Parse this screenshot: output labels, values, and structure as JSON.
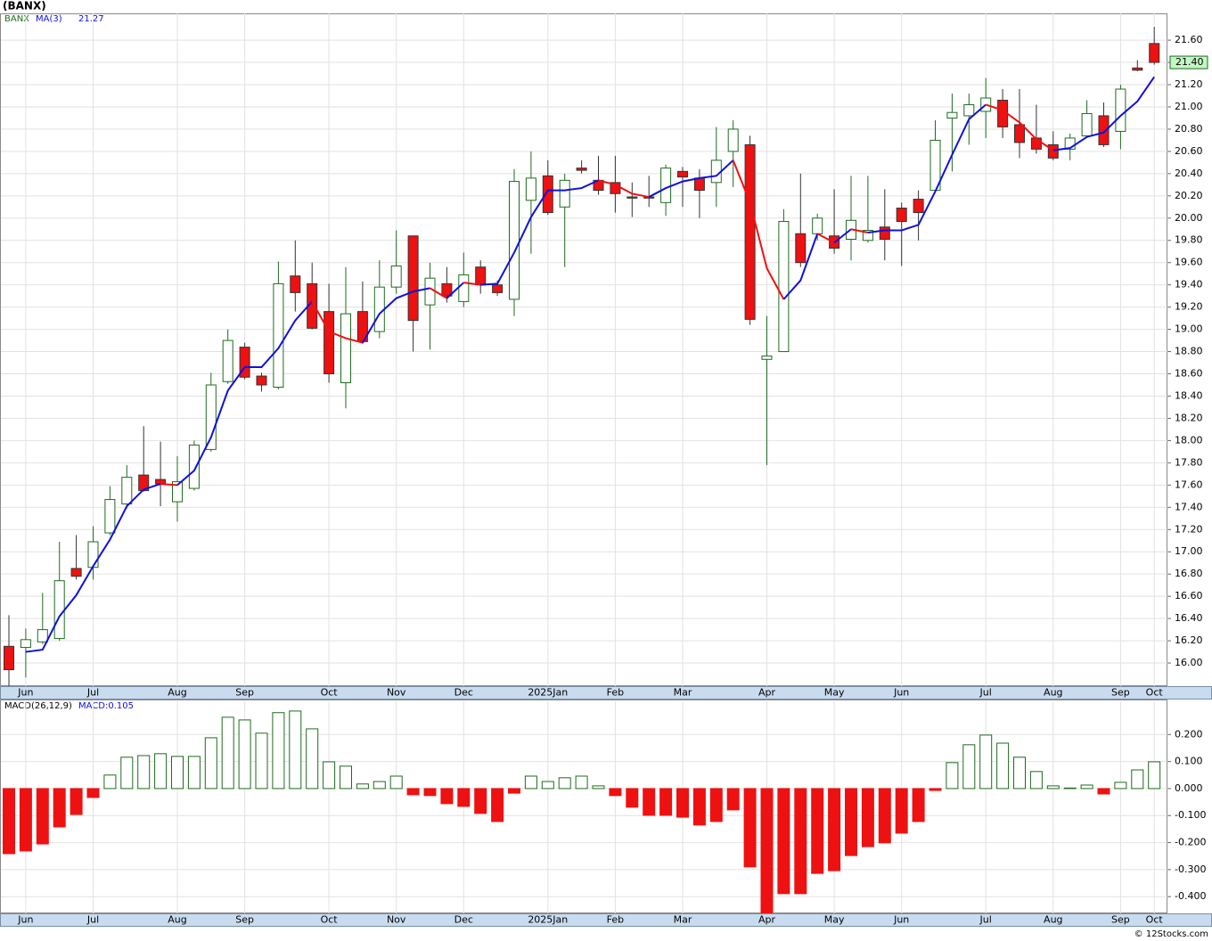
{
  "title": "(BANX)",
  "footer": "© 12Stocks.com",
  "chart_data": [
    {
      "type": "candlestick",
      "symbol": "BANX",
      "categories": [
        null,
        "Jun",
        null,
        null,
        null,
        "Jul",
        null,
        null,
        null,
        null,
        "Aug",
        null,
        null,
        null,
        "Sep",
        null,
        null,
        null,
        null,
        "Oct",
        null,
        null,
        null,
        "Nov",
        null,
        null,
        null,
        "Dec",
        null,
        null,
        null,
        null,
        "2025Jan",
        null,
        null,
        null,
        "Feb",
        null,
        null,
        null,
        "Mar",
        null,
        null,
        null,
        null,
        "Apr",
        null,
        null,
        null,
        "May",
        null,
        null,
        null,
        "Jun",
        null,
        null,
        null,
        null,
        "Jul",
        null,
        null,
        null,
        "Aug",
        null,
        null,
        null,
        "Sep",
        null,
        "Oct"
      ],
      "open": [
        16.15,
        16.14,
        16.19,
        16.22,
        16.85,
        16.86,
        17.17,
        17.43,
        17.69,
        17.65,
        17.45,
        17.57,
        17.92,
        18.53,
        18.84,
        18.58,
        18.48,
        19.48,
        19.41,
        19.16,
        18.52,
        19.16,
        18.98,
        19.38,
        19.84,
        19.22,
        19.41,
        19.25,
        19.56,
        19.4,
        19.27,
        20.16,
        20.38,
        20.1,
        20.45,
        20.34,
        20.32,
        20.19,
        20.19,
        20.14,
        20.42,
        20.36,
        20.32,
        20.6,
        20.66,
        18.73,
        18.8,
        19.86,
        19.86,
        19.84,
        19.81,
        19.8,
        19.92,
        20.09,
        20.17,
        20.25,
        20.9,
        20.92,
        20.96,
        21.06,
        20.84,
        20.72,
        20.66,
        20.62,
        20.74,
        20.92,
        20.78,
        21.35,
        21.57
      ],
      "high": [
        16.43,
        16.31,
        16.63,
        17.09,
        17.15,
        17.23,
        17.59,
        17.78,
        18.13,
        17.99,
        17.86,
        18.0,
        18.61,
        19.0,
        18.88,
        18.61,
        19.61,
        19.8,
        19.6,
        19.41,
        19.56,
        19.43,
        19.62,
        19.89,
        19.84,
        19.6,
        19.56,
        19.69,
        19.62,
        19.44,
        20.44,
        20.6,
        20.52,
        20.4,
        20.52,
        20.56,
        20.56,
        20.32,
        20.38,
        20.48,
        20.46,
        20.44,
        20.82,
        20.88,
        20.74,
        19.12,
        20.08,
        20.4,
        20.04,
        20.26,
        20.38,
        20.38,
        20.26,
        20.14,
        20.25,
        20.88,
        21.12,
        21.12,
        21.26,
        21.16,
        21.16,
        21.02,
        20.78,
        20.76,
        21.06,
        21.04,
        21.2,
        21.42,
        21.72
      ],
      "low": [
        15.79,
        15.87,
        16.17,
        16.2,
        16.75,
        16.75,
        17.15,
        17.39,
        17.54,
        17.41,
        17.27,
        17.55,
        17.9,
        18.51,
        18.55,
        18.44,
        18.46,
        19.16,
        19.0,
        18.52,
        18.29,
        18.87,
        18.92,
        19.32,
        18.8,
        18.82,
        19.24,
        19.2,
        19.32,
        19.3,
        19.12,
        19.68,
        20.03,
        19.56,
        20.4,
        20.21,
        20.05,
        20.01,
        20.1,
        20.02,
        20.1,
        20.0,
        20.1,
        20.28,
        19.04,
        17.78,
        18.8,
        19.56,
        19.8,
        19.68,
        19.62,
        19.78,
        19.62,
        19.57,
        19.8,
        20.23,
        20.42,
        20.66,
        20.72,
        20.72,
        20.54,
        20.58,
        20.52,
        20.52,
        20.72,
        20.64,
        20.62,
        21.32,
        21.38
      ],
      "close": [
        15.94,
        16.21,
        16.3,
        16.74,
        16.78,
        17.09,
        17.47,
        17.67,
        17.55,
        17.61,
        17.63,
        17.96,
        18.5,
        18.9,
        18.57,
        18.5,
        19.41,
        19.33,
        19.01,
        18.6,
        19.14,
        18.89,
        19.38,
        19.57,
        19.08,
        19.46,
        19.3,
        19.49,
        19.4,
        19.33,
        20.33,
        20.36,
        20.05,
        20.34,
        20.43,
        20.25,
        20.22,
        20.18,
        20.18,
        20.45,
        20.37,
        20.25,
        20.52,
        20.8,
        19.09,
        18.76,
        19.97,
        19.6,
        20.0,
        19.73,
        19.98,
        19.89,
        19.81,
        19.97,
        20.05,
        20.7,
        20.95,
        21.02,
        21.08,
        20.82,
        20.68,
        20.62,
        20.54,
        20.72,
        20.94,
        20.66,
        21.16,
        21.33,
        21.4
      ],
      "up_color": "#1f6b1f",
      "down_color": "#ee1111",
      "ma": {
        "name": "MA(3)",
        "rising_color": "#1010dd",
        "falling_color": "#ee1111",
        "values": [
          null,
          16.1,
          16.12,
          16.42,
          16.61,
          16.87,
          17.11,
          17.41,
          17.56,
          17.61,
          17.6,
          17.73,
          18.03,
          18.45,
          18.66,
          18.66,
          18.83,
          19.08,
          19.25,
          18.98,
          18.92,
          18.88,
          19.14,
          19.28,
          19.34,
          19.37,
          19.28,
          19.42,
          19.4,
          19.41,
          19.69,
          20.01,
          20.25,
          20.25,
          20.27,
          20.34,
          20.3,
          20.22,
          20.19,
          20.27,
          20.33,
          20.36,
          20.38,
          20.52,
          20.14,
          19.55,
          19.27,
          19.44,
          19.86,
          19.78,
          19.9,
          19.87,
          19.89,
          19.89,
          19.94,
          20.24,
          20.57,
          20.89,
          21.02,
          20.97,
          20.86,
          20.71,
          20.61,
          20.63,
          20.73,
          20.77,
          20.92,
          21.05,
          21.27
        ]
      },
      "last_price": {
        "value": 21.4,
        "label": "21.40"
      },
      "ylim": [
        15.792,
        21.841
      ],
      "yticks": [
        {
          "value": 16,
          "label": "16.00"
        },
        {
          "value": 16.2,
          "label": "16.20"
        },
        {
          "value": 16.4,
          "label": "16.40"
        },
        {
          "value": 16.6,
          "label": "16.60"
        },
        {
          "value": 16.8,
          "label": "16.80"
        },
        {
          "value": 17,
          "label": "17.00"
        },
        {
          "value": 17.2,
          "label": "17.20"
        },
        {
          "value": 17.4,
          "label": "17.40"
        },
        {
          "value": 17.6,
          "label": "17.60"
        },
        {
          "value": 17.8,
          "label": "17.80"
        },
        {
          "value": 18,
          "label": "18.00"
        },
        {
          "value": 18.2,
          "label": "18.20"
        },
        {
          "value": 18.4,
          "label": "18.40"
        },
        {
          "value": 18.6,
          "label": "18.60"
        },
        {
          "value": 18.8,
          "label": "18.80"
        },
        {
          "value": 19,
          "label": "19.00"
        },
        {
          "value": 19.2,
          "label": "19.20"
        },
        {
          "value": 19.4,
          "label": "19.40"
        },
        {
          "value": 19.6,
          "label": "19.60"
        },
        {
          "value": 19.8,
          "label": "19.80"
        },
        {
          "value": 20,
          "label": "20.00"
        },
        {
          "value": 20.2,
          "label": "20.20"
        },
        {
          "value": 20.4,
          "label": "20.40"
        },
        {
          "value": 20.6,
          "label": "20.60"
        },
        {
          "value": 20.8,
          "label": "20.80"
        },
        {
          "value": 21,
          "label": "21.00"
        },
        {
          "value": 21.2,
          "label": "21.20"
        },
        {
          "value": 21.4,
          "label": "21.40"
        },
        {
          "value": 21.6,
          "label": "21.60"
        }
      ],
      "grid": true
    },
    {
      "type": "bar",
      "title": "MACD(26,12,9)",
      "subtitle": "MACD:0.105",
      "values": [
        -0.241,
        -0.231,
        -0.205,
        -0.142,
        -0.096,
        -0.033,
        0.05,
        0.116,
        0.122,
        0.129,
        0.119,
        0.119,
        0.188,
        0.264,
        0.254,
        0.205,
        0.281,
        0.287,
        0.221,
        0.099,
        0.083,
        0.017,
        0.026,
        0.046,
        -0.023,
        -0.026,
        -0.056,
        -0.066,
        -0.092,
        -0.122,
        -0.017,
        0.046,
        0.026,
        0.04,
        0.046,
        0.01,
        -0.026,
        -0.069,
        -0.099,
        -0.099,
        -0.106,
        -0.135,
        -0.122,
        -0.079,
        -0.29,
        -0.47,
        -0.389,
        -0.389,
        -0.314,
        -0.304,
        -0.248,
        -0.215,
        -0.201,
        -0.165,
        -0.122,
        -0.007,
        0.096,
        0.162,
        0.198,
        0.168,
        0.116,
        0.063,
        0.01,
        0.002,
        0.013,
        -0.02,
        0.023,
        0.069,
        0.099
      ],
      "up_color": "#1f6b1f",
      "down_color": "#ee1111",
      "ylim": [
        -0.462,
        0.323
      ],
      "yticks": [
        {
          "value": 0.2,
          "label": "0.200"
        },
        {
          "value": 0.1,
          "label": "0.100"
        },
        {
          "value": 0,
          "label": "0.000"
        },
        {
          "value": -0.1,
          "label": "-0.100"
        },
        {
          "value": -0.2,
          "label": "-0.200"
        },
        {
          "value": -0.3,
          "label": "-0.300"
        },
        {
          "value": -0.4,
          "label": "-0.400"
        }
      ],
      "grid": true
    }
  ]
}
